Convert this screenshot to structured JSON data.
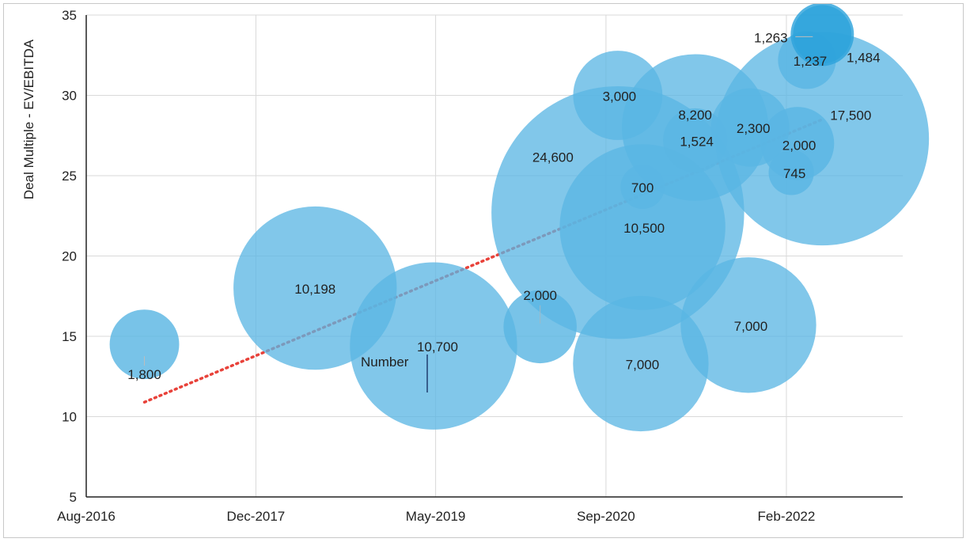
{
  "chart_data": {
    "type": "bubble",
    "title": "",
    "ylabel": "Deal Multiple - EV/EBITDA",
    "xlabel": "",
    "x_tick_labels": [
      "Aug-2016",
      "Dec-2017",
      "May-2019",
      "Sep-2020",
      "Feb-2022"
    ],
    "x_ticks": [
      "2016-08-01",
      "2017-12-01",
      "2019-05-01",
      "2020-09-01",
      "2022-02-01"
    ],
    "xlim": [
      "2016-08-01",
      "2023-01-01"
    ],
    "ylim": [
      5,
      35
    ],
    "y_ticks": [
      5,
      10,
      15,
      20,
      25,
      30,
      35
    ],
    "grid": true,
    "colors": {
      "bubble": "#5ab6e3",
      "bubble_dark": "#2ea3dc",
      "trendline": "#e8423a",
      "grid": "#d9d9d9",
      "axis": "#222222"
    },
    "points": [
      {
        "date": "2017-01-15",
        "y": 14.5,
        "size": 1800,
        "label": "1,800"
      },
      {
        "date": "2018-05-20",
        "y": 18.0,
        "size": 10198,
        "label": "10,198"
      },
      {
        "date": "2019-04-25",
        "y": 14.4,
        "size": 10700,
        "label": "10,700"
      },
      {
        "date": "2020-02-25",
        "y": 15.6,
        "size": 2000,
        "label": "2,000"
      },
      {
        "date": "2020-10-05",
        "y": 22.7,
        "size": 24600,
        "label": "24,600"
      },
      {
        "date": "2020-10-05",
        "y": 30.0,
        "size": 3000,
        "label": "3,000"
      },
      {
        "date": "2020-12-15",
        "y": 21.8,
        "size": 10500,
        "label": "10,500"
      },
      {
        "date": "2020-12-15",
        "y": 24.3,
        "size": 700,
        "label": "700"
      },
      {
        "date": "2020-12-10",
        "y": 13.3,
        "size": 7000,
        "label": "7,000"
      },
      {
        "date": "2021-05-15",
        "y": 28.0,
        "size": 8200,
        "label": "8,200"
      },
      {
        "date": "2021-05-15",
        "y": 27.2,
        "size": 1524,
        "label": "1,524"
      },
      {
        "date": "2021-10-20",
        "y": 28.0,
        "size": 2300,
        "label": "2,300"
      },
      {
        "date": "2021-10-15",
        "y": 15.7,
        "size": 7000,
        "label": "7,000"
      },
      {
        "date": "2022-02-15",
        "y": 25.2,
        "size": 745,
        "label": "745"
      },
      {
        "date": "2022-03-05",
        "y": 27.0,
        "size": 2000,
        "label": "2,000"
      },
      {
        "date": "2022-04-01",
        "y": 32.2,
        "size": 1237,
        "label": "1,237"
      },
      {
        "date": "2022-05-15",
        "y": 27.3,
        "size": 17500,
        "label": "17,500"
      },
      {
        "date": "2022-05-15",
        "y": 33.8,
        "size": 1263,
        "label": "1,263"
      },
      {
        "date": "2022-05-15",
        "y": 33.8,
        "size": 1484,
        "label": "1,484"
      }
    ],
    "trendline": {
      "style": "dotted",
      "start": {
        "date": "2017-01-15",
        "y": 10.9
      },
      "end": {
        "date": "2022-05-15",
        "y": 28.5
      }
    },
    "annotations": [
      "Number"
    ]
  }
}
